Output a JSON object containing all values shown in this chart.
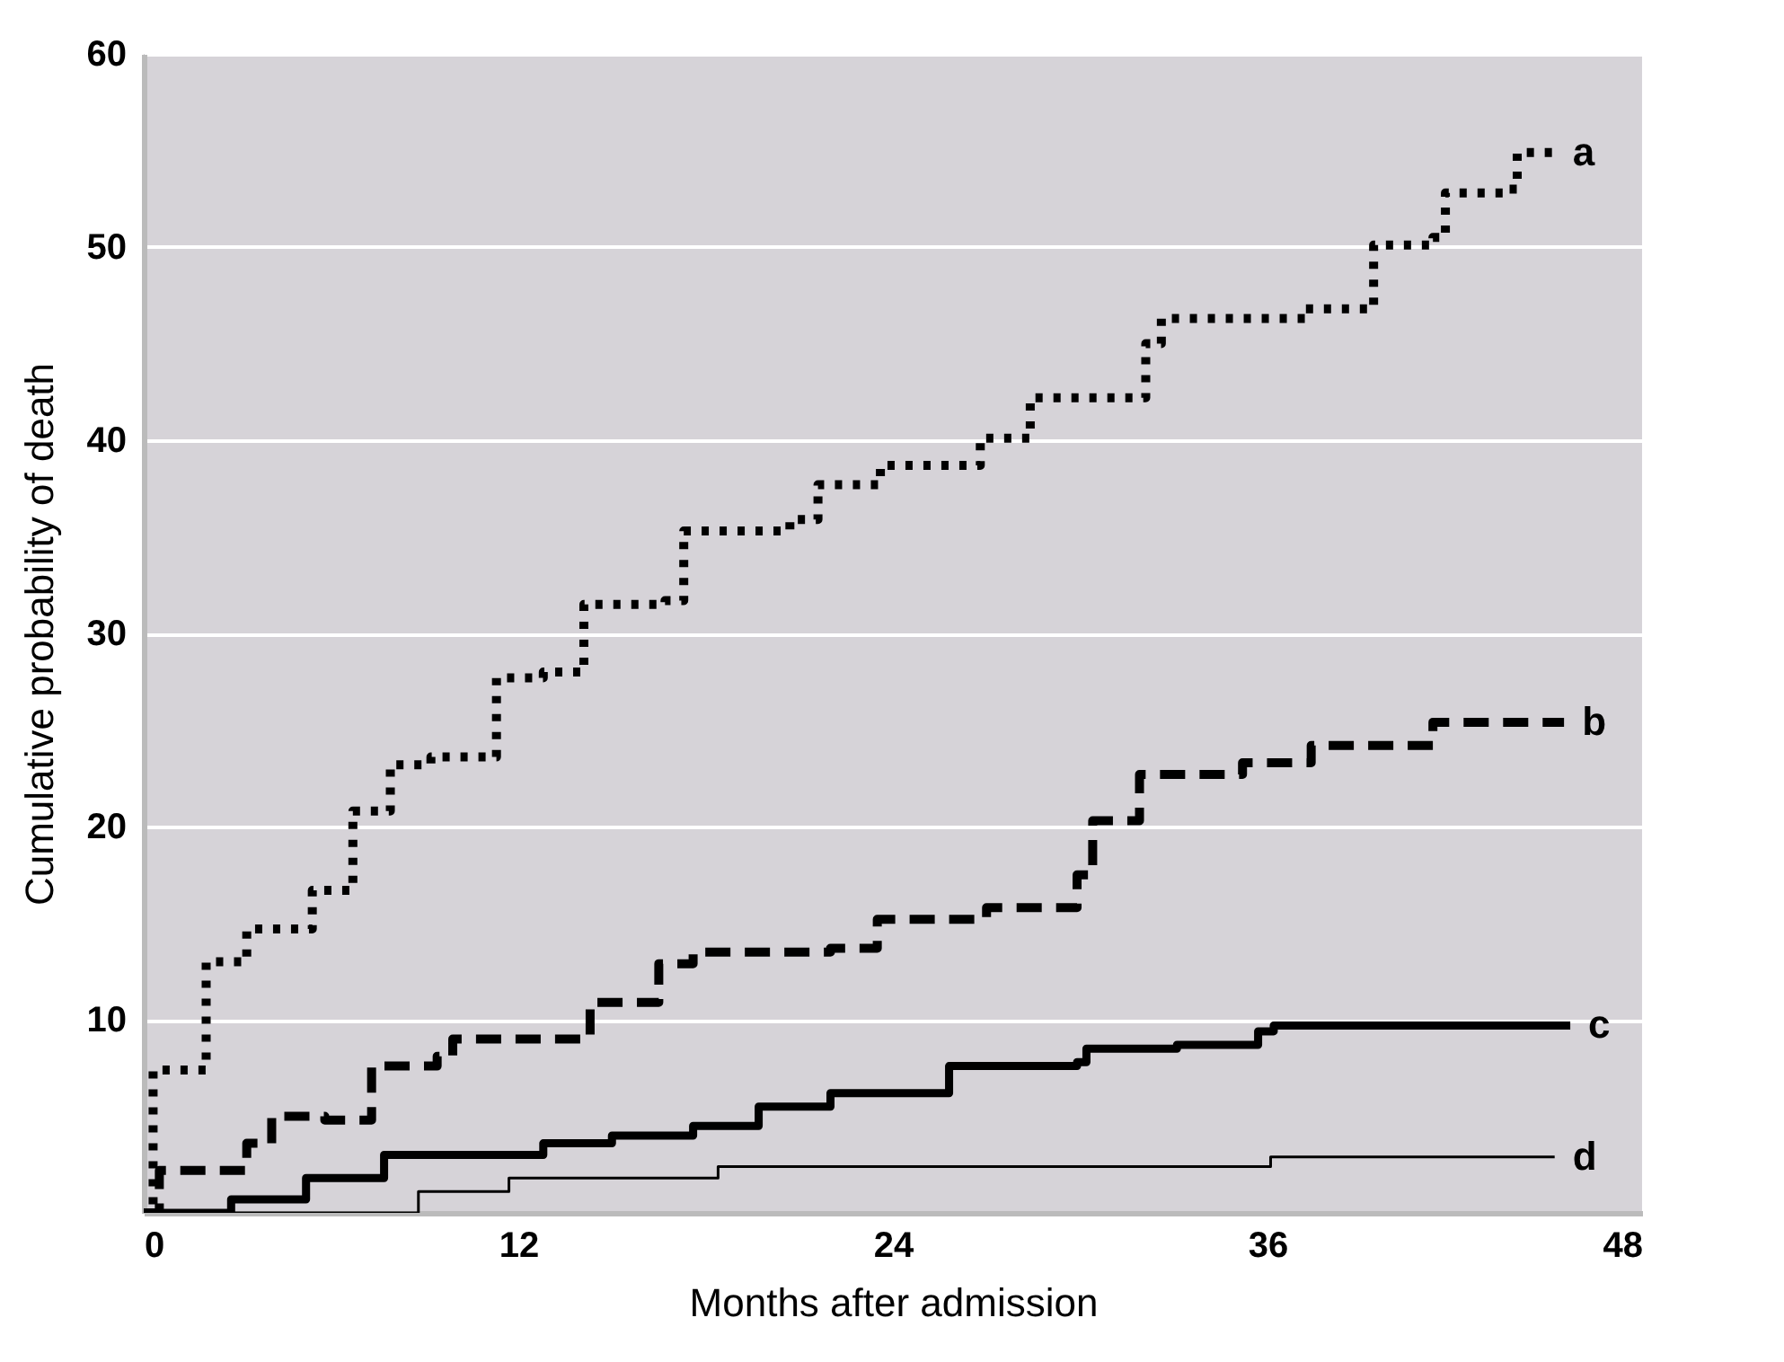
{
  "chart_data": {
    "type": "step",
    "xlabel": "Months after admission",
    "ylabel": "Cumulative probability of death",
    "xlim": [
      0,
      48
    ],
    "xticks": [
      0,
      12,
      24,
      36,
      48
    ],
    "ylim": [
      0,
      60
    ],
    "yticks": [
      10,
      20,
      30,
      40,
      50,
      60
    ],
    "grid": "y",
    "series": [
      {
        "name": "a",
        "color": "#000000",
        "line_style": "dotted",
        "x": [
          0,
          0.3,
          2,
          3.3,
          5.4,
          6.7,
          7.9,
          9.2,
          11.3,
          12.8,
          14.1,
          16.7,
          17.3,
          20.7,
          21.6,
          23.6,
          26.8,
          28.4,
          32.1,
          32.6,
          37.2,
          39.4,
          41.3,
          41.7,
          43.7,
          44,
          45.2
        ],
        "values": [
          0,
          7.4,
          13,
          14.7,
          16.7,
          20.8,
          23.2,
          23.6,
          27.7,
          28,
          31.5,
          31.7,
          35.3,
          35.9,
          37.7,
          38.7,
          40.1,
          42.2,
          45,
          46.3,
          46.8,
          50.1,
          50.5,
          52.8,
          53,
          54.9,
          54.9
        ]
      },
      {
        "name": "b",
        "color": "#000000",
        "line_style": "dashed",
        "x": [
          0,
          0.5,
          3.3,
          4.1,
          5.8,
          7.3,
          9.4,
          9.9,
          13.1,
          14.3,
          16.5,
          17.6,
          22,
          23.5,
          27,
          29.9,
          30.4,
          31.9,
          35.2,
          37.4,
          40.6,
          41.3,
          45.5
        ],
        "values": [
          0,
          2.2,
          3.6,
          5,
          4.8,
          7.6,
          8.1,
          9,
          9,
          10.9,
          12.9,
          13.5,
          13.7,
          15.2,
          15.8,
          17.5,
          20.3,
          22.7,
          23.3,
          24.2,
          24.2,
          25.4,
          25.4
        ]
      },
      {
        "name": "c",
        "color": "#000000",
        "line_style": "solid",
        "x": [
          0,
          2.8,
          4.5,
          5.2,
          7.7,
          12.6,
          12.8,
          15,
          17.6,
          19.7,
          22,
          24.8,
          25.8,
          29.9,
          30.2,
          33.1,
          35.7,
          36.2,
          45.7
        ],
        "values": [
          0,
          0.7,
          0.7,
          1.8,
          3,
          3,
          3.6,
          4,
          4.5,
          5.5,
          6.2,
          6.2,
          7.6,
          7.8,
          8.5,
          8.7,
          9.4,
          9.7,
          9.7
        ]
      },
      {
        "name": "d",
        "color": "#000000",
        "line_style": "solid",
        "x": [
          0,
          8.6,
          8.8,
          11.7,
          18.4,
          36.1,
          45.2
        ],
        "values": [
          0,
          0,
          1.1,
          1.8,
          2.4,
          2.9,
          2.9
        ]
      }
    ]
  }
}
